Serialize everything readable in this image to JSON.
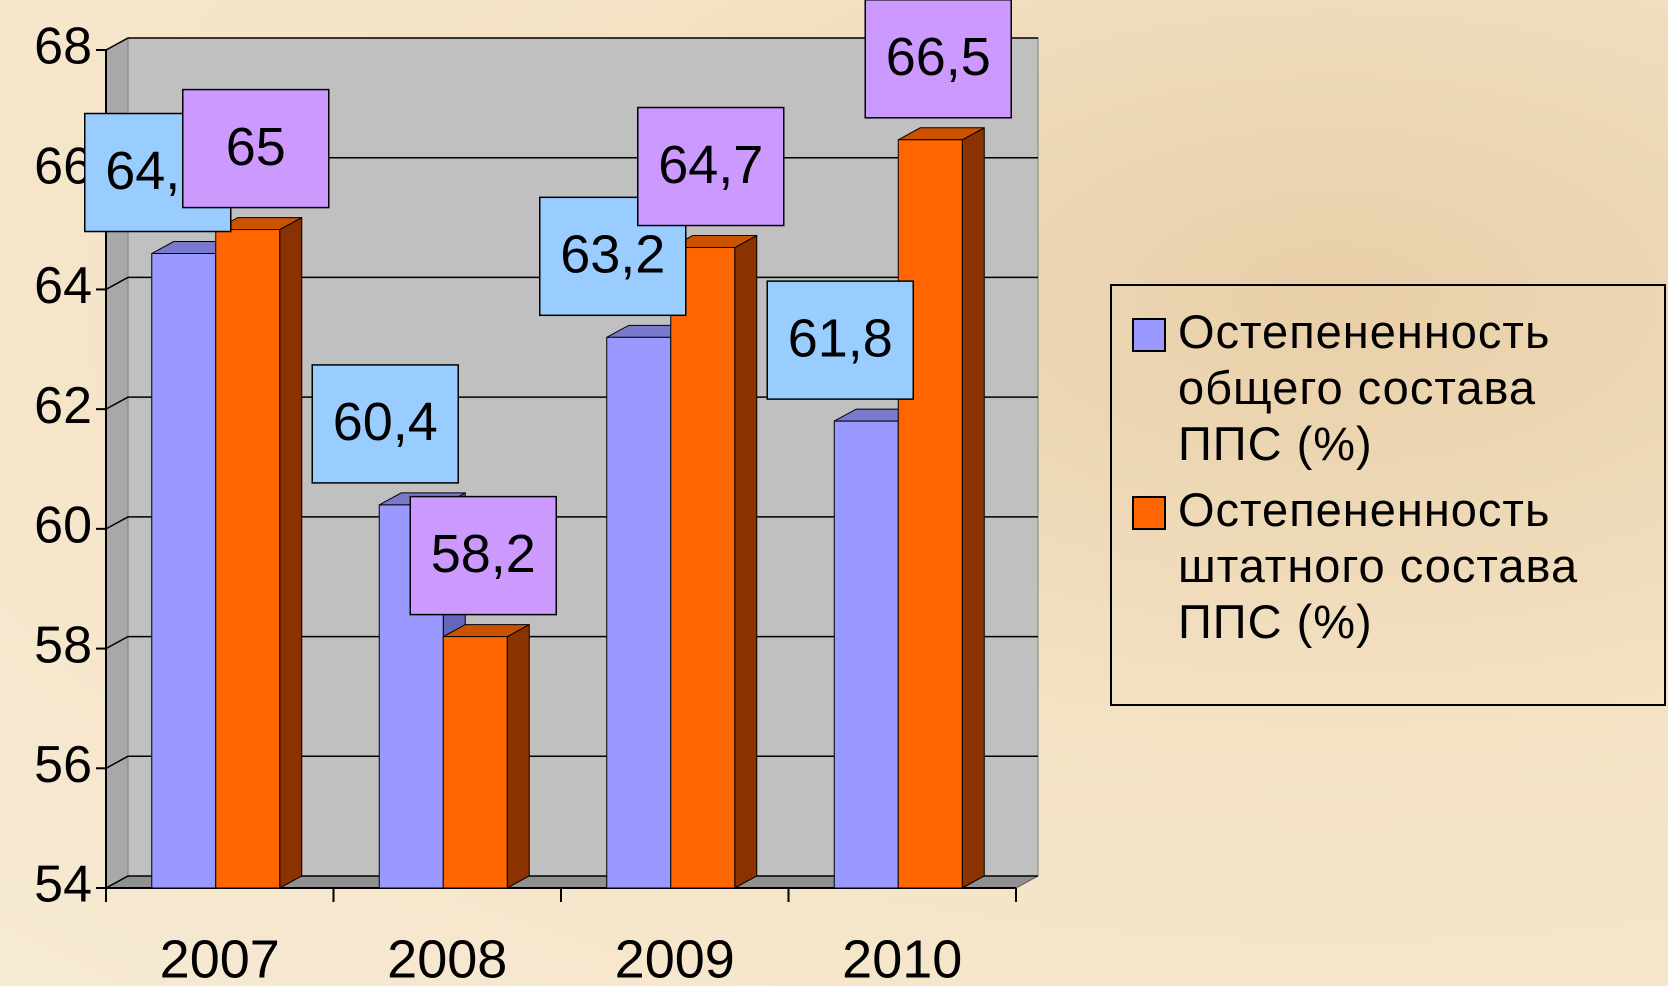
{
  "chart_data": {
    "type": "bar3d",
    "categories": [
      "2007",
      "2008",
      "2009",
      "2010"
    ],
    "series": [
      {
        "name": "Остепененность общего состава ППС (%)",
        "color": "#9999ff",
        "label_color": "#99ccff",
        "values": [
          64.6,
          60.4,
          63.2,
          61.8
        ],
        "value_labels": [
          "64,6",
          "60,4",
          "63,2",
          "61,8"
        ]
      },
      {
        "name": "Остепененность штатного состава ППС (%)",
        "color": "#ff6600",
        "label_color": "#cc99ff",
        "values": [
          65,
          58.2,
          64.7,
          66.5
        ],
        "value_labels": [
          "65",
          "58,2",
          "64,7",
          "66,5"
        ]
      }
    ],
    "ylim": [
      54,
      68
    ],
    "yticks": [
      54,
      56,
      58,
      60,
      62,
      64,
      66,
      68
    ],
    "grid": true,
    "legend": "right"
  }
}
